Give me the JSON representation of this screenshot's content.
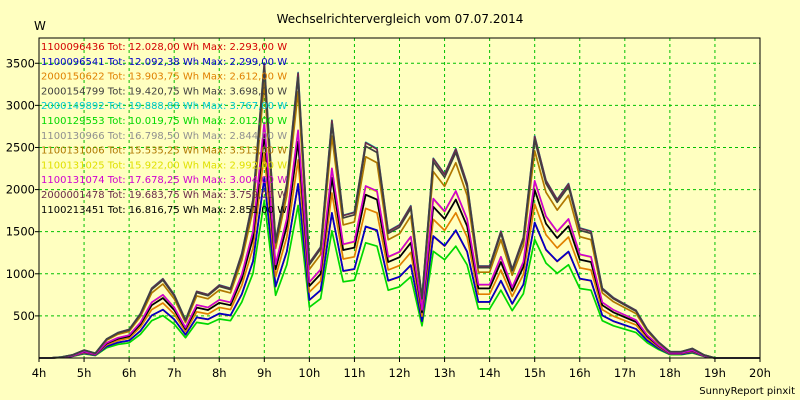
{
  "chart_data": {
    "type": "line",
    "title": "Wechselrichtervergleich vom 07.07.2014",
    "ylabel": "W",
    "credit": "SunnyReport pinxit",
    "x_ticks": [
      "4h",
      "5h",
      "6h",
      "7h",
      "8h",
      "9h",
      "10h",
      "11h",
      "12h",
      "13h",
      "14h",
      "15h",
      "16h",
      "17h",
      "18h",
      "19h",
      "20h"
    ],
    "x_range": [
      4,
      20
    ],
    "y_ticks": [
      500,
      1000,
      1500,
      2000,
      2500,
      3000,
      3500
    ],
    "ylim": [
      0,
      3800
    ],
    "grid": true,
    "legend_position": "top-left",
    "x": [
      4.0,
      4.25,
      4.5,
      4.75,
      5.0,
      5.25,
      5.5,
      5.75,
      6.0,
      6.25,
      6.5,
      6.75,
      7.0,
      7.25,
      7.5,
      7.75,
      8.0,
      8.25,
      8.5,
      8.75,
      9.0,
      9.25,
      9.5,
      9.75,
      10.0,
      10.25,
      10.5,
      10.75,
      11.0,
      11.25,
      11.5,
      11.75,
      12.0,
      12.25,
      12.5,
      12.75,
      13.0,
      13.25,
      13.5,
      13.75,
      14.0,
      14.25,
      14.5,
      14.75,
      15.0,
      15.25,
      15.5,
      15.75,
      16.0,
      16.25,
      16.5,
      16.75,
      17.0,
      17.25,
      17.5,
      17.75,
      18.0,
      18.25,
      18.5,
      18.75,
      19.0,
      19.25,
      19.5,
      19.75,
      20.0
    ],
    "shape": [
      0,
      0,
      0.003,
      0.01,
      0.025,
      0.015,
      0.06,
      0.08,
      0.09,
      0.14,
      0.22,
      0.25,
      0.2,
      0.12,
      0.21,
      0.2,
      0.23,
      0.22,
      0.33,
      0.5,
      0.93,
      0.37,
      0.55,
      0.9,
      0.3,
      0.35,
      0.75,
      0.45,
      0.46,
      0.68,
      0.66,
      0.4,
      0.42,
      0.48,
      0.19,
      0.63,
      0.58,
      0.66,
      0.55,
      0.29,
      0.29,
      0.4,
      0.28,
      0.38,
      0.7,
      0.56,
      0.5,
      0.55,
      0.41,
      0.4,
      0.22,
      0.19,
      0.17,
      0.15,
      0.09,
      0.05,
      0.02,
      0.02,
      0.03,
      0.01,
      0.0,
      0.0,
      0.0,
      0.0,
      0.0
    ],
    "series": [
      {
        "legend": "1100096436 Tot: 12.028,00 Wh Max: 2.293,00 W",
        "color": "#d40000",
        "peak": 2293
      },
      {
        "legend": "1100096541 Tot: 12.092,38 Wh Max: 2.299,00 W",
        "color": "#0000c8",
        "peak": 2299
      },
      {
        "legend": "2000150622 Tot: 13.903,75 Wh Max: 2.612,00 W",
        "color": "#e08000",
        "peak": 2612
      },
      {
        "legend": "2000154799 Tot: 19.420,75 Wh Max: 3.698,00 W",
        "color": "#404040",
        "peak": 3698
      },
      {
        "legend": "2000149892 Tot: 19.888,88 Wh Max: 3.767,00 W",
        "color": "#00c8d0",
        "peak": 3767
      },
      {
        "legend": "1100129553 Tot: 10.019,75 Wh Max: 2.012,00 W",
        "color": "#00d800",
        "peak": 2012
      },
      {
        "legend": "1100130966 Tot: 16.798,50 Wh Max: 2.844,00 W",
        "color": "#909090",
        "peak": 2844
      },
      {
        "legend": "1100131006 Tot: 15.535,25 Wh Max: 3.513,00 W",
        "color": "#b07800",
        "peak": 3513
      },
      {
        "legend": "1100131025 Tot: 15.922,00 Wh Max: 2.992,00 W",
        "color": "#e0e000",
        "peak": 2992
      },
      {
        "legend": "1100131074 Tot: 17.678,25 Wh Max: 3.004,00 W",
        "color": "#d000d0",
        "peak": 3004
      },
      {
        "legend": "2000001478 Tot: 19.683,75 Wh Max: 3.759,00 W",
        "color": "#6a2a4a",
        "peak": 3759
      },
      {
        "legend": "1100213451 Tot: 16.816,75 Wh Max: 2.851,00 W",
        "color": "#000000",
        "peak": 2851
      }
    ]
  }
}
